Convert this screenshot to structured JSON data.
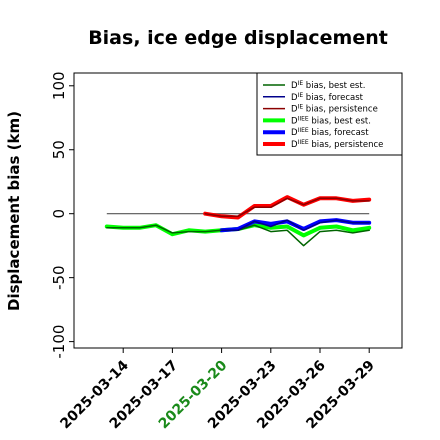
{
  "chart_data": {
    "type": "line",
    "title": "Bias, ice edge displacement",
    "ylabel": "Displacement bias (km)",
    "ylim": [
      -105,
      110
    ],
    "yticks": [
      -100,
      -50,
      0,
      50,
      100
    ],
    "xlim": [
      "2025-03-11",
      "2025-03-31"
    ],
    "xticks": [
      "2025-03-14",
      "2025-03-17",
      "2025-03-20",
      "2025-03-23",
      "2025-03-26",
      "2025-03-29"
    ],
    "highlighted_xtick": "2025-03-20",
    "highlight_color": "#1a8a1a",
    "grid": false,
    "legend_position": "top-right",
    "zero_line": {
      "y": 0,
      "from": "2025-03-13",
      "to": "2025-03-29",
      "color": "#555555"
    },
    "series": [
      {
        "name": "D^IE bias, best est.",
        "legend_main": "D",
        "legend_sup": "IE",
        "legend_rest": " bias, best est.",
        "color": "#006400",
        "width": 1.5,
        "x": [
          "2025-03-13",
          "2025-03-14",
          "2025-03-15",
          "2025-03-16",
          "2025-03-17",
          "2025-03-18",
          "2025-03-19",
          "2025-03-20",
          "2025-03-21",
          "2025-03-22",
          "2025-03-23",
          "2025-03-24",
          "2025-03-25",
          "2025-03-26",
          "2025-03-27",
          "2025-03-28",
          "2025-03-29"
        ],
        "y": [
          -11,
          -11,
          -11,
          -9,
          -15,
          -14,
          -14,
          -13,
          -13,
          -9,
          -14,
          -13,
          -25,
          -14,
          -13,
          -15,
          -13
        ]
      },
      {
        "name": "D^IE bias, forecast",
        "legend_main": "D",
        "legend_sup": "IE",
        "legend_rest": " bias, forecast",
        "color": "#00008b",
        "width": 1.5,
        "x": [
          "2025-03-20",
          "2025-03-21",
          "2025-03-22",
          "2025-03-23",
          "2025-03-24",
          "2025-03-25",
          "2025-03-26",
          "2025-03-27",
          "2025-03-28",
          "2025-03-29"
        ],
        "y": [
          -13,
          -13,
          -6,
          -10,
          -5,
          -13,
          -7,
          -5,
          -7,
          -7
        ]
      },
      {
        "name": "D^IE bias, persistence",
        "legend_main": "D",
        "legend_sup": "IE",
        "legend_rest": " bias, persistence",
        "color": "#8b0000",
        "width": 1.5,
        "x": [
          "2025-03-19",
          "2025-03-20",
          "2025-03-21",
          "2025-03-22",
          "2025-03-23",
          "2025-03-24",
          "2025-03-25",
          "2025-03-26",
          "2025-03-27",
          "2025-03-28",
          "2025-03-29"
        ],
        "y": [
          0,
          -2,
          -2,
          5,
          5,
          12,
          7,
          12,
          12,
          10,
          10
        ]
      },
      {
        "name": "D^IIEE bias, best est.",
        "legend_main": "D",
        "legend_sup": "IIEE",
        "legend_rest": " bias, best est.",
        "color": "#00ff00",
        "width": 4,
        "x": [
          "2025-03-13",
          "2025-03-14",
          "2025-03-15",
          "2025-03-16",
          "2025-03-17",
          "2025-03-18",
          "2025-03-19",
          "2025-03-20",
          "2025-03-21",
          "2025-03-22",
          "2025-03-23",
          "2025-03-24",
          "2025-03-25",
          "2025-03-26",
          "2025-03-27",
          "2025-03-28",
          "2025-03-29"
        ],
        "y": [
          -10,
          -11,
          -11,
          -9,
          -16,
          -13,
          -14,
          -13,
          -12,
          -9,
          -11,
          -10,
          -17,
          -11,
          -10,
          -13,
          -11
        ]
      },
      {
        "name": "D^IIEE bias, forecast",
        "legend_main": "D",
        "legend_sup": "IIEE",
        "legend_rest": " bias, forecast",
        "color": "#0000ff",
        "width": 4,
        "x": [
          "2025-03-20",
          "2025-03-21",
          "2025-03-22",
          "2025-03-23",
          "2025-03-24",
          "2025-03-25",
          "2025-03-26",
          "2025-03-27",
          "2025-03-28",
          "2025-03-29"
        ],
        "y": [
          -13,
          -12,
          -6,
          -8,
          -6,
          -12,
          -6,
          -5,
          -7,
          -7
        ]
      },
      {
        "name": "D^IIEE bias, persistence",
        "legend_main": "D",
        "legend_sup": "IIEE",
        "legend_rest": " bias, persistence",
        "color": "#ff0000",
        "width": 4,
        "x": [
          "2025-03-19",
          "2025-03-20",
          "2025-03-21",
          "2025-03-22",
          "2025-03-23",
          "2025-03-24",
          "2025-03-25",
          "2025-03-26",
          "2025-03-27",
          "2025-03-28",
          "2025-03-29"
        ],
        "y": [
          0,
          -2,
          -3,
          6,
          6,
          13,
          7,
          12,
          12,
          10,
          11
        ]
      }
    ]
  }
}
